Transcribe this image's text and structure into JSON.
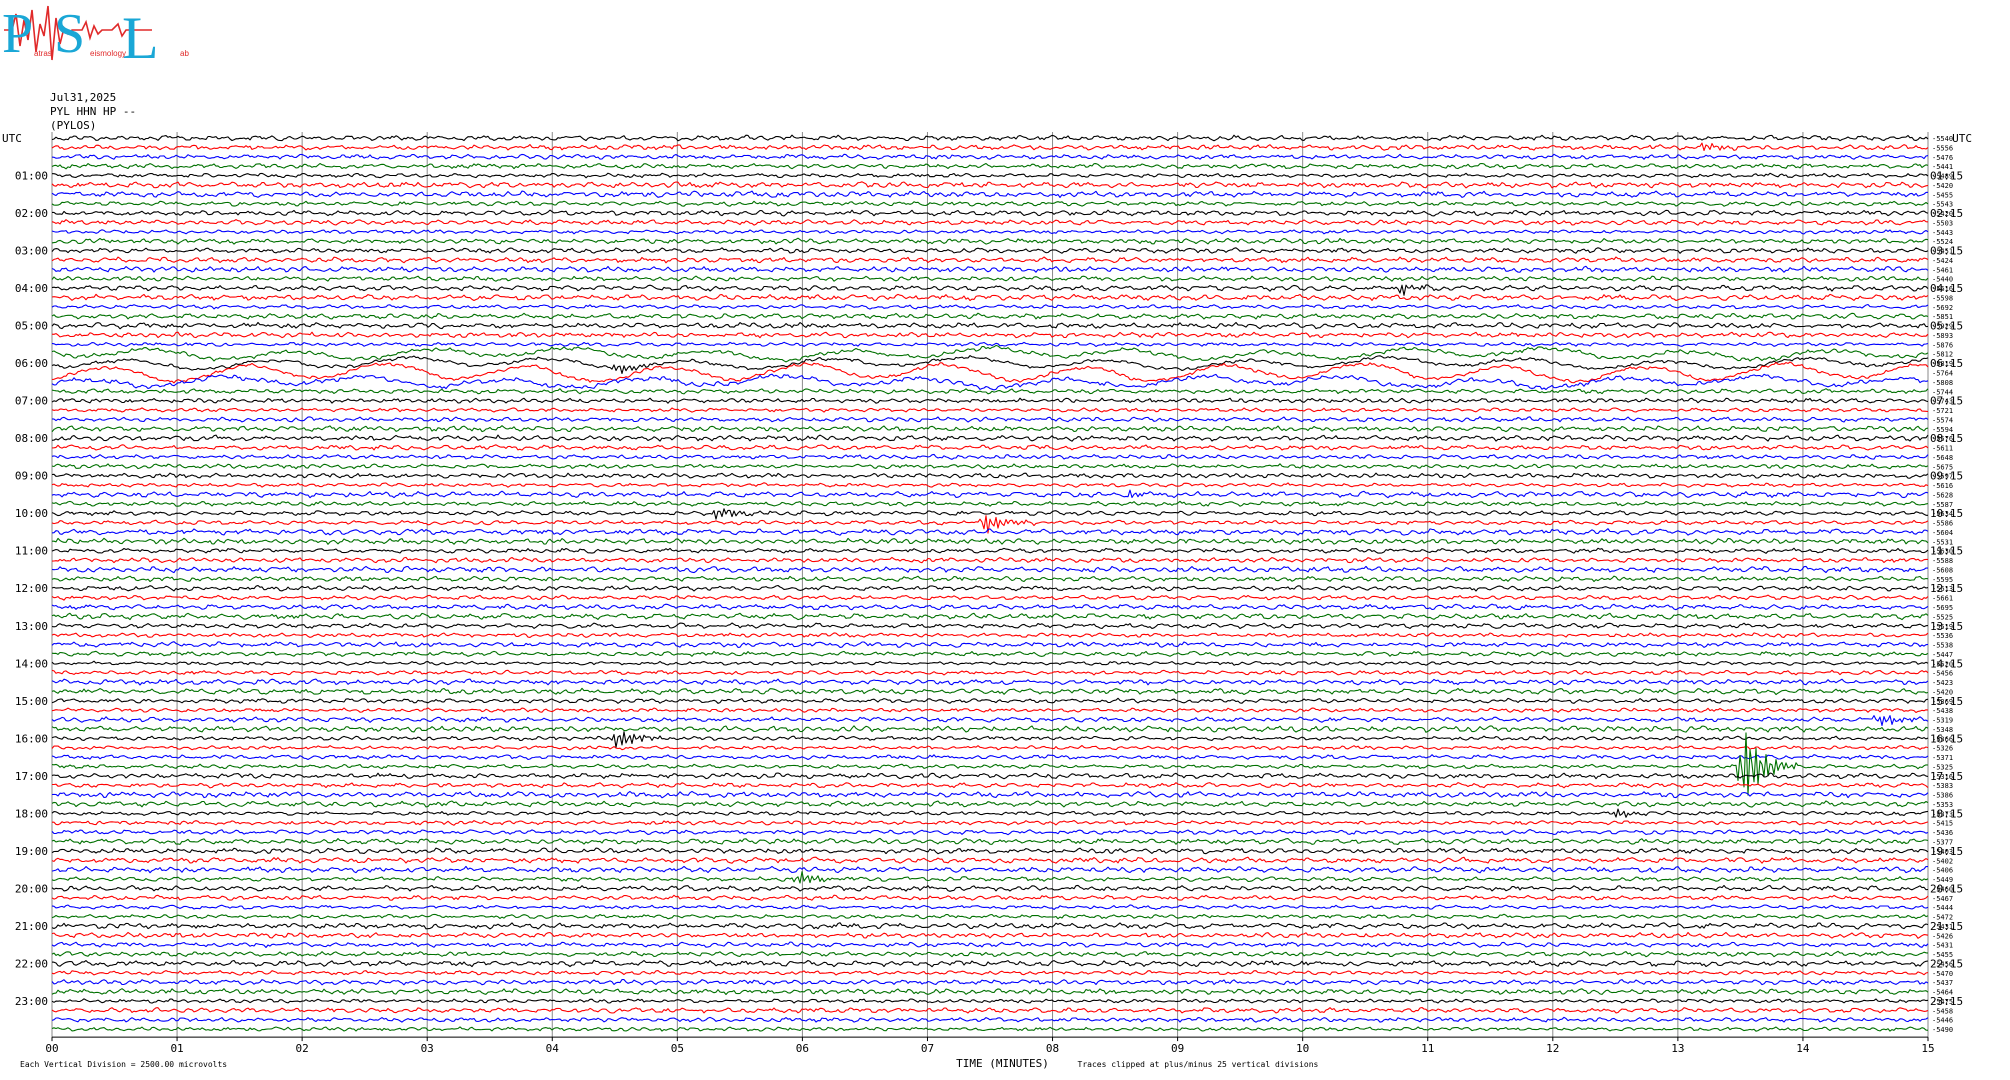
{
  "logo": {
    "big": [
      "P",
      "S",
      "L"
    ],
    "small": [
      "atras",
      "eismology",
      "ab"
    ]
  },
  "header": {
    "date": "Jul31,2025",
    "station": "PYL HHN HP --",
    "site": "(PYLOS)"
  },
  "chart_data": {
    "type": "line",
    "title": "",
    "xlabel": "TIME (MINUTES)",
    "x_ticks": [
      "00",
      "01",
      "02",
      "03",
      "04",
      "05",
      "06",
      "07",
      "08",
      "09",
      "10",
      "11",
      "12",
      "13",
      "14",
      "15"
    ],
    "xlim": [
      0,
      15
    ],
    "left_axis_label": "UTC",
    "right_axis_label": "UTC",
    "left_hour_labels": [
      "01:00",
      "02:00",
      "03:00",
      "04:00",
      "05:00",
      "06:00",
      "07:00",
      "08:00",
      "09:00",
      "10:00",
      "11:00",
      "12:00",
      "13:00",
      "14:00",
      "15:00",
      "16:00",
      "17:00",
      "18:00",
      "19:00",
      "20:00",
      "21:00",
      "22:00",
      "23:00"
    ],
    "right_hour_labels": [
      "01:15",
      "02:15",
      "03:15",
      "04:15",
      "05:15",
      "06:15",
      "07:15",
      "08:15",
      "09:15",
      "10:15",
      "11:15",
      "12:15",
      "13:15",
      "14:15",
      "15:15",
      "16:15",
      "17:15",
      "18:15",
      "19:15",
      "20:15",
      "21:15",
      "22:15",
      "23:15"
    ],
    "trace_colors": [
      "#000000",
      "#ff0000",
      "#0000ff",
      "#007000"
    ],
    "trace_count": 96,
    "trace_minutes_each": 15,
    "trace_offsets": [
      "-5540",
      "-5556",
      "-5476",
      "-5441",
      "-5489",
      "-5420",
      "-5455",
      "-5543",
      "-5420",
      "-5503",
      "-5443",
      "-5524",
      "-5451",
      "-5424",
      "-5461",
      "-5440",
      "-5616",
      "-5598",
      "-5692",
      "-5851",
      "-5929",
      "-5893",
      "-5876",
      "-5812",
      "-5819",
      "-5764",
      "-5808",
      "-5744",
      "-5743",
      "-5721",
      "-5574",
      "-5594",
      "-5576",
      "-5611",
      "-5648",
      "-5675",
      "-5597",
      "-5616",
      "-5628",
      "-5587",
      "-5634",
      "-5586",
      "-5604",
      "-5531",
      "-5630",
      "-5588",
      "-5608",
      "-5595",
      "-5613",
      "-5661",
      "-5695",
      "-5525",
      "-5519",
      "-5536",
      "-5538",
      "-5447",
      "-5520",
      "-5456",
      "-5423",
      "-5420",
      "-5369",
      "-5438",
      "-5319",
      "-5348",
      "-5366",
      "-5326",
      "-5371",
      "-5325",
      "-5316",
      "-5383",
      "-5386",
      "-5353",
      "-5373",
      "-5415",
      "-5436",
      "-5377",
      "-5403",
      "-5402",
      "-5406",
      "-5449",
      "-5460",
      "-5467",
      "-5444",
      "-5472",
      "-5431",
      "-5426",
      "-5431",
      "-5455",
      "-5456",
      "-5470",
      "-5437",
      "-5464",
      "-5475",
      "-5458",
      "-5446",
      "-5490"
    ],
    "events": [
      {
        "trace": 1,
        "minute": 13.2,
        "amp": 0.35
      },
      {
        "trace": 16,
        "minute": 10.75,
        "amp": 0.45
      },
      {
        "trace": 24,
        "minute": 4.5,
        "amp": 0.4
      },
      {
        "trace": 38,
        "minute": 8.6,
        "amp": 0.25
      },
      {
        "trace": 40,
        "minute": 5.3,
        "amp": 0.45
      },
      {
        "trace": 41,
        "minute": 7.45,
        "amp": 0.75
      },
      {
        "trace": 62,
        "minute": 14.6,
        "amp": 0.5
      },
      {
        "trace": 64,
        "minute": 4.5,
        "amp": 0.8
      },
      {
        "trace": 67,
        "minute": 13.5,
        "amp": 3.2
      },
      {
        "trace": 72,
        "minute": 12.5,
        "amp": 0.3
      },
      {
        "trace": 79,
        "minute": 5.95,
        "amp": 0.5
      }
    ],
    "footer_left": "Each Vertical Division = 2500.00 microvolts",
    "footer_right": "Traces clipped at plus/minus 25 vertical divisions"
  }
}
